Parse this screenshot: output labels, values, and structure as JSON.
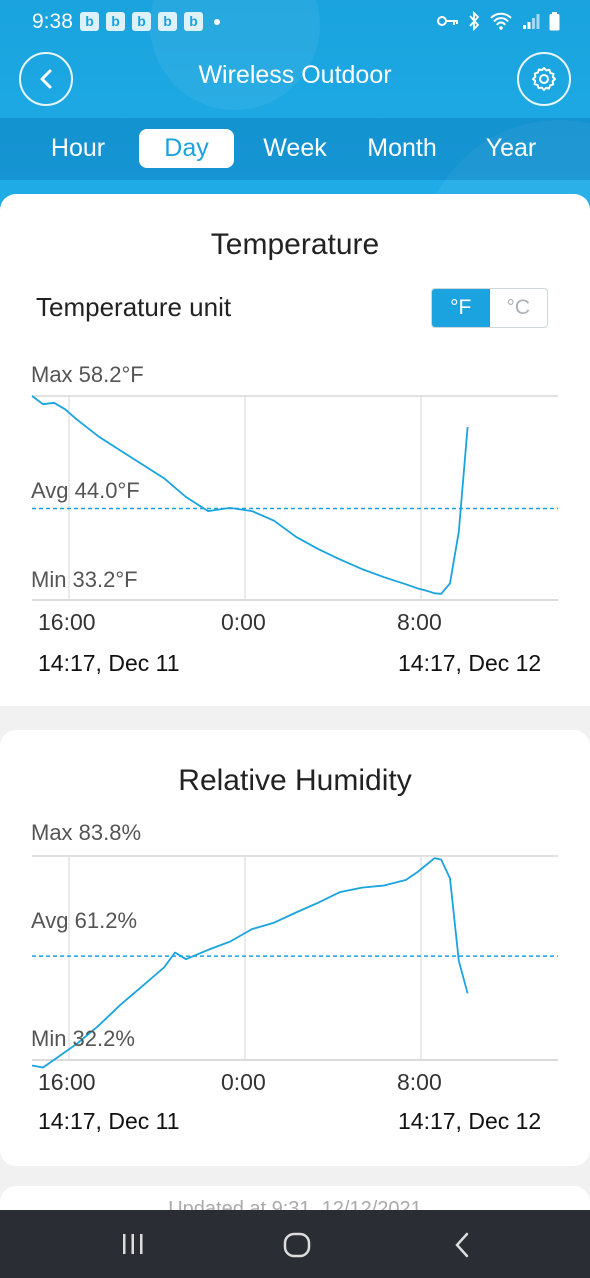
{
  "status_bar": {
    "time": "9:38",
    "notifications": [
      "b",
      "b",
      "b",
      "b",
      "b"
    ]
  },
  "nav": {
    "title": "Wireless Outdoor"
  },
  "tabs": [
    "Hour",
    "Day",
    "Week",
    "Month",
    "Year"
  ],
  "active_tab": "Day",
  "temperature": {
    "title": "Temperature",
    "unit_label": "Temperature unit",
    "units": [
      "°F",
      "°C"
    ],
    "active_unit": "°F",
    "max_label": "Max 58.2°F",
    "avg_label": "Avg 44.0°F",
    "min_label": "Min 33.2°F",
    "x_ticks": [
      "16:00",
      "0:00",
      "8:00"
    ],
    "range_start": "14:17,  Dec 11",
    "range_end": "14:17,  Dec 12"
  },
  "humidity": {
    "title": "Relative Humidity",
    "max_label": "Max 83.8%",
    "avg_label": "Avg 61.2%",
    "min_label": "Min 32.2%",
    "x_ticks": [
      "16:00",
      "0:00",
      "8:00"
    ],
    "range_start": "14:17,  Dec 11",
    "range_end": "14:17,  Dec 12"
  },
  "updated_text": "Updated at 9:31, 12/12/2021",
  "chart_data": [
    {
      "type": "line",
      "title": "Temperature",
      "x_unit": "hours since 14:17 Dec 11",
      "ylim": [
        33.2,
        58.2
      ],
      "avg": 44.0,
      "x": [
        0,
        0.5,
        1,
        1.5,
        2,
        3,
        4,
        5,
        6,
        7,
        8,
        9,
        10,
        11,
        12,
        13,
        14,
        15,
        16,
        17,
        17.5,
        18,
        18.3,
        18.6,
        19,
        19.4,
        19.8
      ],
      "values": [
        58.2,
        57.2,
        57.4,
        56.6,
        55.4,
        53.2,
        51.4,
        49.6,
        47.8,
        45.4,
        43.6,
        44.0,
        43.6,
        42.4,
        40.4,
        38.9,
        37.6,
        36.4,
        35.4,
        34.5,
        34.0,
        33.6,
        33.3,
        33.2,
        34.5,
        41.0,
        54.2
      ]
    },
    {
      "type": "line",
      "title": "Relative Humidity",
      "x_unit": "hours since 14:17 Dec 11",
      "ylim": [
        32.2,
        83.8
      ],
      "avg": 61.2,
      "x": [
        0,
        0.5,
        1,
        2,
        3,
        4,
        5,
        6,
        6.5,
        7,
        8,
        9,
        10,
        11,
        12,
        13,
        14,
        15,
        16,
        17,
        17.5,
        18,
        18.3,
        18.6,
        19,
        19.4,
        19.8
      ],
      "values": [
        36.0,
        35.6,
        37.4,
        41.0,
        45.2,
        50.0,
        54.3,
        58.6,
        62.0,
        60.4,
        62.5,
        64.4,
        67.3,
        68.8,
        71.2,
        73.5,
        76.0,
        77.1,
        77.6,
        78.9,
        80.6,
        82.6,
        83.8,
        83.4,
        79.0,
        60.0,
        52.5
      ]
    }
  ]
}
